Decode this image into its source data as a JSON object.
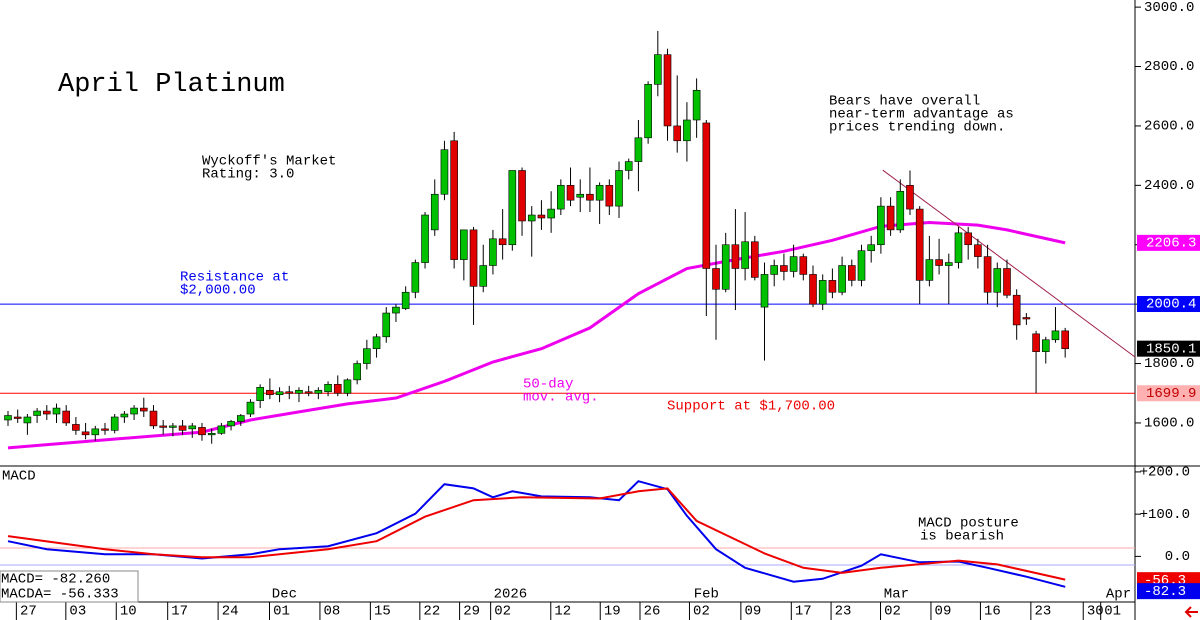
{
  "chart_data": [
    {
      "type": "candlestick",
      "title": "April Platinum",
      "annotations": [
        {
          "lines": [
            "Wyckoff's Market",
            "Rating: 3.0"
          ],
          "color": "#000000"
        },
        {
          "lines": [
            "Resistance at",
            "$2,000.00"
          ],
          "color": "#0000ee"
        },
        {
          "lines": [
            "Support at $1,700.00"
          ],
          "color": "#ee0000"
        },
        {
          "lines": [
            "50-day",
            "mov. avg."
          ],
          "color": "#ee00ee"
        },
        {
          "lines": [
            "Bears have overall",
            "near-term advantage as",
            "prices trending down."
          ],
          "color": "#000000"
        }
      ],
      "xlim": [
        -0.825,
        116.2
      ],
      "ylim": [
        1455,
        3024
      ],
      "yticks": [
        {
          "value": 1600,
          "label": "1600.0"
        },
        {
          "value": 1800,
          "label": "1800.0"
        },
        {
          "value": 2000,
          "label": "2000.0"
        },
        {
          "value": 2200,
          "label": "2200.0"
        },
        {
          "value": 2400,
          "label": "2400.0"
        },
        {
          "value": 2600,
          "label": "2600.0"
        },
        {
          "value": 2800,
          "label": "2800.0"
        },
        {
          "value": 3000,
          "label": "3000.0"
        }
      ],
      "up_color": "#00c000",
      "down_color": "#e00000",
      "x": [
        0,
        1,
        2,
        3,
        4,
        5,
        6,
        7,
        8,
        9,
        10,
        11,
        12,
        13,
        14,
        15,
        16,
        17,
        18,
        19,
        20,
        21,
        22,
        23,
        24,
        25,
        26,
        27,
        28,
        29,
        30,
        31,
        32,
        33,
        34,
        35,
        36,
        37,
        38,
        39,
        40,
        41,
        42,
        43,
        44,
        45,
        46,
        47,
        48,
        49,
        50,
        51,
        52,
        53,
        54,
        55,
        56,
        57,
        58,
        59,
        60,
        61,
        62,
        63,
        64,
        65,
        66,
        67,
        68,
        69,
        70,
        71,
        72,
        73,
        74,
        75,
        76,
        77,
        78,
        79,
        80,
        81,
        82,
        83,
        84,
        85,
        86,
        87,
        88,
        89,
        90,
        91,
        92,
        93,
        94,
        95,
        96,
        97,
        98,
        99,
        100,
        101,
        102,
        103,
        104,
        105,
        106,
        107,
        108,
        109
      ],
      "open": [
        1610,
        1620,
        1600,
        1625,
        1640,
        1630,
        1640,
        1595,
        1570,
        1560,
        1580,
        1575,
        1620,
        1630,
        1650,
        1640,
        1590,
        1585,
        1590,
        1580,
        1585,
        1560,
        1565,
        1590,
        1605,
        1630,
        1675,
        1710,
        1695,
        1705,
        1700,
        1705,
        1700,
        1705,
        1730,
        1700,
        1745,
        1800,
        1850,
        1890,
        1970,
        1985,
        2040,
        2140,
        2250,
        2370,
        2550,
        2150,
        2250,
        2060,
        2130,
        2220,
        2200,
        2450,
        2280,
        2300,
        2290,
        2320,
        2400,
        2360,
        2370,
        2350,
        2400,
        2330,
        2450,
        2480,
        2560,
        2740,
        2840,
        2600,
        2550,
        2620,
        2610,
        2120,
        2050,
        2200,
        2120,
        2210,
        1990,
        2100,
        2130,
        2110,
        2160,
        2100,
        2000,
        2080,
        2040,
        2130,
        2080,
        2180,
        2200,
        2330,
        2250,
        2400,
        2320,
        2080,
        2150,
        2130,
        2140,
        2240,
        2200,
        2160,
        2040,
        2120,
        2030,
        1955,
        1900,
        1840,
        1880,
        1910
      ],
      "high": [
        1640,
        1645,
        1630,
        1650,
        1660,
        1665,
        1660,
        1620,
        1600,
        1590,
        1600,
        1630,
        1640,
        1660,
        1685,
        1660,
        1610,
        1600,
        1610,
        1600,
        1600,
        1580,
        1600,
        1610,
        1630,
        1680,
        1730,
        1750,
        1720,
        1725,
        1720,
        1725,
        1720,
        1740,
        1760,
        1750,
        1810,
        1880,
        1900,
        1990,
        2000,
        2060,
        2150,
        2310,
        2420,
        2550,
        2580,
        2240,
        2260,
        2200,
        2250,
        2320,
        2450,
        2460,
        2330,
        2350,
        2380,
        2420,
        2460,
        2420,
        2460,
        2410,
        2420,
        2480,
        2490,
        2620,
        2750,
        2920,
        2860,
        2770,
        2680,
        2760,
        2620,
        2200,
        2240,
        2320,
        2310,
        2230,
        2140,
        2150,
        2170,
        2200,
        2170,
        2130,
        2100,
        2120,
        2160,
        2150,
        2200,
        2230,
        2360,
        2360,
        2420,
        2450,
        2330,
        2230,
        2220,
        2170,
        2260,
        2260,
        2220,
        2200,
        2140,
        2150,
        2050,
        1970,
        1910,
        1890,
        1990,
        1920
      ],
      "low": [
        1590,
        1600,
        1560,
        1600,
        1610,
        1600,
        1590,
        1560,
        1545,
        1540,
        1560,
        1565,
        1600,
        1610,
        1620,
        1580,
        1560,
        1555,
        1560,
        1550,
        1540,
        1530,
        1560,
        1575,
        1590,
        1620,
        1650,
        1680,
        1670,
        1680,
        1670,
        1690,
        1680,
        1690,
        1690,
        1690,
        1730,
        1780,
        1820,
        1870,
        1940,
        1980,
        2020,
        2120,
        2230,
        2350,
        2120,
        2080,
        1930,
        2040,
        2100,
        2150,
        2180,
        2230,
        2160,
        2250,
        2240,
        2300,
        2330,
        2310,
        2310,
        2270,
        2300,
        2290,
        2420,
        2380,
        2540,
        2700,
        2550,
        2510,
        2480,
        2560,
        1960,
        1880,
        2040,
        1980,
        2080,
        2080,
        1810,
        2060,
        2080,
        2090,
        2080,
        1990,
        1980,
        2020,
        2030,
        2060,
        2060,
        2140,
        2170,
        2230,
        2240,
        2300,
        2000,
        2060,
        2100,
        2000,
        2120,
        2150,
        2120,
        2000,
        1990,
        2020,
        1880,
        1930,
        1700,
        1800,
        1870,
        1820
      ],
      "close": [
        1625,
        1615,
        1620,
        1640,
        1630,
        1650,
        1600,
        1575,
        1560,
        1580,
        1575,
        1620,
        1630,
        1650,
        1640,
        1590,
        1585,
        1590,
        1575,
        1590,
        1560,
        1565,
        1590,
        1605,
        1625,
        1670,
        1720,
        1695,
        1705,
        1700,
        1710,
        1700,
        1710,
        1730,
        1700,
        1745,
        1800,
        1850,
        1890,
        1970,
        1990,
        2040,
        2140,
        2300,
        2370,
        2520,
        2150,
        2250,
        2060,
        2130,
        2220,
        2200,
        2450,
        2280,
        2300,
        2290,
        2320,
        2400,
        2350,
        2370,
        2350,
        2400,
        2330,
        2450,
        2480,
        2560,
        2740,
        2840,
        2600,
        2550,
        2620,
        2720,
        2120,
        2050,
        2200,
        2120,
        2210,
        2090,
        2100,
        2130,
        2110,
        2160,
        2100,
        2000,
        2080,
        2040,
        2130,
        2080,
        2180,
        2200,
        2330,
        2250,
        2380,
        2320,
        2080,
        2150,
        2130,
        2140,
        2240,
        2200,
        2160,
        2040,
        2120,
        2030,
        1930,
        1950,
        1840,
        1880,
        1910,
        1850
      ],
      "moving_average": {
        "color": "#ee00ee",
        "x": [
          0,
          10,
          20,
          25,
          30,
          35,
          40,
          45,
          50,
          55,
          60,
          65,
          70,
          75,
          80,
          85,
          90,
          95,
          100,
          103,
          109
        ],
        "values": [
          1516,
          1543,
          1569,
          1610,
          1637,
          1664,
          1684,
          1740,
          1805,
          1850,
          1920,
          2035,
          2120,
          2150,
          2178,
          2215,
          2262,
          2275,
          2266,
          2250,
          2206
        ]
      },
      "trendline": {
        "color": "#a0204a",
        "x": [
          90.2,
          116.2
        ],
        "values": [
          2451,
          1822
        ]
      },
      "levels": [
        {
          "value": 2000,
          "color": "#0000ff"
        },
        {
          "value": 1700,
          "color": "#ff0000"
        }
      ],
      "price_labels": [
        {
          "value": 2206.3,
          "label": "2206.3",
          "background": "#ff00ff",
          "color": "#ffffff"
        },
        {
          "value": 2000.4,
          "label": "2000.4",
          "background": "#0000ff",
          "color": "#ffffff"
        },
        {
          "value": 1850.1,
          "label": "1850.1",
          "background": "#000000",
          "color": "#ffffff"
        },
        {
          "value": 1699.9,
          "label": "1699.9",
          "background": "#ffb0b0",
          "color": "#c00000"
        }
      ]
    },
    {
      "type": "line",
      "title": "MACD",
      "annotations": [
        {
          "lines": [
            "MACD posture",
            "is bearish"
          ],
          "color": "#000000"
        }
      ],
      "readout": [
        "MACD=  -82.260",
        "MACDA= -56.333"
      ],
      "xlim": [
        -0.825,
        116.2
      ],
      "ylim": [
        -108,
        214
      ],
      "yticks": [
        {
          "value": 0,
          "label": "0.0"
        },
        {
          "value": 100,
          "label": "+100.0"
        },
        {
          "value": 200,
          "label": "+200.0"
        }
      ],
      "xticks": [
        {
          "value": 2.1,
          "label": "27"
        },
        {
          "value": 7.2,
          "label": "03"
        },
        {
          "value": 12.4,
          "label": "10"
        },
        {
          "value": 17.7,
          "label": "17"
        },
        {
          "value": 22.9,
          "label": "24"
        },
        {
          "value": 28.2,
          "label": "01"
        },
        {
          "value": 33.4,
          "label": "08"
        },
        {
          "value": 38.6,
          "label": "15"
        },
        {
          "value": 43.7,
          "label": "22"
        },
        {
          "value": 47.8,
          "label": "29"
        },
        {
          "value": 51,
          "label": "02"
        },
        {
          "value": 57.2,
          "label": "12"
        },
        {
          "value": 62.3,
          "label": "19"
        },
        {
          "value": 66.4,
          "label": "26"
        },
        {
          "value": 71.5,
          "label": "02"
        },
        {
          "value": 76.8,
          "label": "09"
        },
        {
          "value": 82,
          "label": "17"
        },
        {
          "value": 86.1,
          "label": "23"
        },
        {
          "value": 91.2,
          "label": "02"
        },
        {
          "value": 96.4,
          "label": "09"
        },
        {
          "value": 101.5,
          "label": "16"
        },
        {
          "value": 106.7,
          "label": "23"
        },
        {
          "value": 112.1,
          "label": "30"
        },
        {
          "value": 113.9,
          "label": "01"
        }
      ],
      "month_labels": [
        {
          "value": 28.5,
          "label": "Dec"
        },
        {
          "value": 51.8,
          "label": "2026"
        },
        {
          "value": 72,
          "label": "Feb"
        },
        {
          "value": 91.6,
          "label": "Mar"
        },
        {
          "value": 114.5,
          "label": "Apr"
        }
      ],
      "series": [
        {
          "name": "MACD",
          "color": "#0000ee",
          "x": [
            0,
            4,
            10,
            15,
            20,
            25,
            28,
            33,
            38,
            42,
            45,
            48,
            50,
            52,
            55,
            60,
            63,
            65,
            68,
            70,
            73,
            76,
            81,
            84,
            88,
            90,
            94,
            98,
            101,
            105,
            109
          ],
          "values": [
            36,
            17,
            5,
            5,
            -5,
            5,
            17,
            24,
            55,
            101,
            171,
            161,
            140,
            154,
            142,
            140,
            133,
            178,
            159,
            96,
            17,
            -27,
            -60,
            -53,
            -22,
            5,
            -14,
            -12,
            -27,
            -48,
            -72
          ]
        },
        {
          "name": "MACDA",
          "color": "#ee0000",
          "x": [
            0,
            10,
            15,
            20,
            25,
            33,
            38,
            43,
            48,
            53,
            61,
            65,
            68,
            71,
            78,
            82,
            86,
            90,
            98,
            102,
            109
          ],
          "values": [
            48,
            17,
            5,
            -2,
            -2,
            17,
            36,
            94,
            133,
            140,
            137,
            154,
            161,
            84,
            7,
            -27,
            -39,
            -27,
            -10,
            -19,
            -55
          ]
        }
      ],
      "value_boxes": [
        {
          "value": -56.3,
          "label": "-56.3",
          "background": "#ee0000",
          "color": "#ffffff"
        },
        {
          "value": -82.3,
          "label": "-82.3",
          "background": "#0000ee",
          "color": "#ffffff"
        }
      ]
    }
  ]
}
